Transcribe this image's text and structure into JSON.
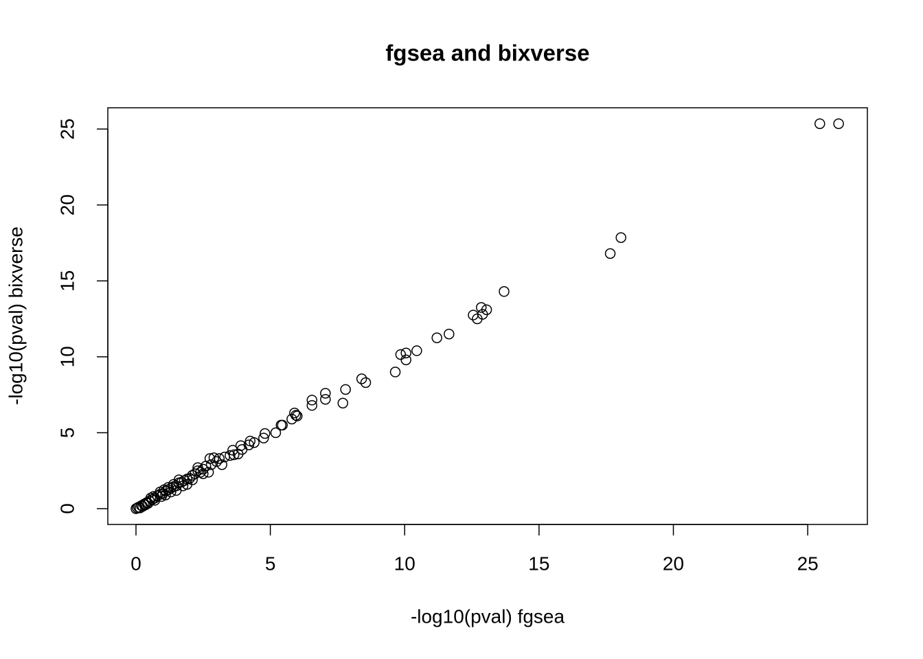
{
  "chart_data": {
    "type": "scatter",
    "title": "fgsea and bixverse",
    "xlabel": "-log10(pval) fgsea",
    "ylabel": "-log10(pval) bixverse",
    "x": [
      25.45,
      26.15,
      17.65,
      18.05,
      13.7,
      12.85,
      13.05,
      12.55,
      12.9,
      12.7,
      11.65,
      11.2,
      10.45,
      10.05,
      9.85,
      10.05,
      9.65,
      8.4,
      8.55,
      7.8,
      7.05,
      7.05,
      7.7,
      6.55,
      6.55,
      5.9,
      5.95,
      6.0,
      5.8,
      5.4,
      5.45,
      5.2,
      4.8,
      4.75,
      4.4,
      4.25,
      4.2,
      3.9,
      3.95,
      3.6,
      3.8,
      3.65,
      3.5,
      3.3,
      3.1,
      3.0,
      2.9,
      2.75,
      2.8,
      2.6,
      2.5,
      2.4,
      2.3,
      2.2,
      2.1,
      2.0,
      1.9,
      1.8,
      1.7,
      1.6,
      1.5,
      1.4,
      1.3,
      1.2,
      1.1,
      1.0,
      0.9,
      0.8,
      0.7,
      0.6,
      0.5,
      0.4,
      0.3,
      0.2,
      0.1,
      0.05,
      0,
      1.5,
      1.3,
      1.9,
      2.5,
      3.2,
      2.7,
      1.1,
      0.7,
      0.45,
      0.35,
      0.25,
      0.15,
      1.6,
      1.2,
      0.9,
      2.3,
      0.55,
      1.75,
      2.1,
      1.4,
      0.65,
      0.95,
      1.05
    ],
    "y": [
      25.35,
      25.35,
      16.8,
      17.85,
      14.3,
      13.25,
      13.1,
      12.75,
      12.8,
      12.5,
      11.5,
      11.25,
      10.4,
      10.25,
      10.15,
      9.8,
      9.0,
      8.55,
      8.3,
      7.85,
      7.6,
      7.2,
      6.95,
      7.15,
      6.8,
      6.3,
      6.15,
      6.1,
      5.9,
      5.5,
      5.5,
      5.0,
      4.95,
      4.65,
      4.35,
      4.45,
      4.2,
      4.15,
      3.9,
      3.85,
      3.6,
      3.55,
      3.5,
      3.4,
      3.3,
      3.1,
      3.35,
      3.3,
      2.9,
      2.8,
      2.6,
      2.4,
      2.5,
      2.3,
      2.2,
      2.0,
      1.95,
      1.85,
      1.75,
      1.7,
      1.5,
      1.45,
      1.35,
      1.25,
      1.15,
      1.0,
      0.95,
      0.85,
      0.7,
      0.6,
      0.5,
      0.4,
      0.3,
      0.2,
      0.1,
      0.05,
      0,
      1.2,
      1.1,
      1.6,
      2.3,
      2.9,
      2.4,
      0.9,
      0.55,
      0.35,
      0.25,
      0.15,
      0.05,
      1.9,
      1.4,
      1.1,
      2.7,
      0.7,
      1.5,
      1.9,
      1.6,
      0.8,
      0.8,
      1.25
    ],
    "color": "#000000",
    "xlim": [
      -1.048,
      27.22
    ],
    "ylim": [
      -1.04,
      26.4
    ],
    "xticks": [
      0,
      5,
      10,
      15,
      20,
      25
    ],
    "yticks": [
      0,
      5,
      10,
      15,
      20,
      25
    ]
  }
}
